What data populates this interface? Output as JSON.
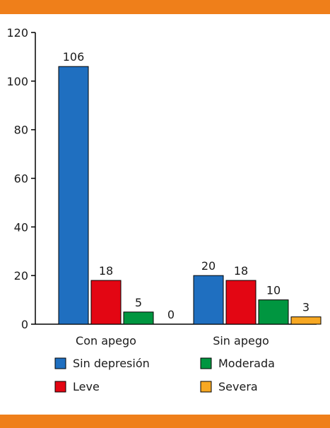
{
  "frame": {
    "band_color": "#ef7f1a"
  },
  "chart_data": {
    "type": "bar",
    "categories": [
      "Con apego",
      "Sin apego"
    ],
    "series": [
      {
        "name": "Sin depresión",
        "color": "#1f6fc0",
        "values": [
          106,
          20
        ]
      },
      {
        "name": "Leve",
        "color": "#e30613",
        "values": [
          18,
          18
        ]
      },
      {
        "name": "Moderada",
        "color": "#009640",
        "values": [
          5,
          10
        ]
      },
      {
        "name": "Severa",
        "color": "#f7a823",
        "values": [
          0,
          3
        ]
      }
    ],
    "ylim": [
      0,
      120
    ],
    "yticks": [
      0,
      20,
      40,
      60,
      80,
      100,
      120
    ],
    "data_labels": true,
    "grid": false,
    "legend": "bottom"
  }
}
